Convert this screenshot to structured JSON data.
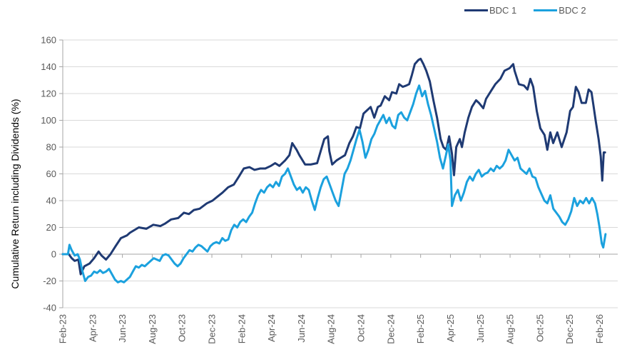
{
  "chart_data": {
    "type": "line",
    "title": "",
    "xlabel": "",
    "ylabel": "Cumulative Return including Dividends (%)",
    "ylim": [
      -40,
      160
    ],
    "yticks": [
      -40,
      -20,
      0,
      20,
      40,
      60,
      80,
      100,
      120,
      140,
      160
    ],
    "grid": true,
    "legend_position": "top-right",
    "x_tick_labels": [
      "Feb-23",
      "Apr-23",
      "Jun-23",
      "Aug-23",
      "Oct-23",
      "Dec-23",
      "Feb-24",
      "Apr-24",
      "Jun-24",
      "Aug-24",
      "Oct-24",
      "Dec-24",
      "Feb-25",
      "Apr-25",
      "Jun-25",
      "Aug-25",
      "Oct-25",
      "Dec-25",
      "Feb-26"
    ],
    "x_unit": "months since Feb-23",
    "xlim": [
      0,
      37.22
    ],
    "series": [
      {
        "name": "BDC 1",
        "color": "#1f3a73",
        "points": [
          [
            0,
            0
          ],
          [
            0.4,
            0
          ],
          [
            0.6,
            -3
          ],
          [
            0.8,
            -5
          ],
          [
            1.05,
            -4
          ],
          [
            1.2,
            -15
          ],
          [
            1.45,
            -9
          ],
          [
            1.8,
            -7
          ],
          [
            2.1,
            -3
          ],
          [
            2.4,
            2
          ],
          [
            2.6,
            -1
          ],
          [
            2.9,
            -4
          ],
          [
            3.2,
            0
          ],
          [
            3.54,
            6
          ],
          [
            3.9,
            12
          ],
          [
            4.3,
            14
          ],
          [
            4.5,
            16
          ],
          [
            5.1,
            20
          ],
          [
            5.6,
            19
          ],
          [
            6.07,
            22
          ],
          [
            6.55,
            21
          ],
          [
            6.88,
            23
          ],
          [
            7.27,
            26
          ],
          [
            7.74,
            27
          ],
          [
            8.13,
            31
          ],
          [
            8.46,
            30
          ],
          [
            8.8,
            33
          ],
          [
            9.18,
            34
          ],
          [
            9.66,
            38
          ],
          [
            10.04,
            40
          ],
          [
            10.37,
            43
          ],
          [
            10.71,
            46
          ],
          [
            11.09,
            50
          ],
          [
            11.47,
            52
          ],
          [
            11.81,
            58
          ],
          [
            12.14,
            64
          ],
          [
            12.52,
            65
          ],
          [
            12.86,
            63
          ],
          [
            13.24,
            64
          ],
          [
            13.58,
            64
          ],
          [
            13.96,
            66
          ],
          [
            14.24,
            68
          ],
          [
            14.53,
            66
          ],
          [
            14.91,
            70
          ],
          [
            15.2,
            74
          ],
          [
            15.39,
            83
          ],
          [
            15.68,
            78
          ],
          [
            15.87,
            74
          ],
          [
            16.25,
            67
          ],
          [
            16.63,
            67
          ],
          [
            17.06,
            68
          ],
          [
            17.3,
            77
          ],
          [
            17.54,
            86
          ],
          [
            17.78,
            88
          ],
          [
            17.88,
            77
          ],
          [
            18.07,
            67
          ],
          [
            18.36,
            70
          ],
          [
            18.64,
            72
          ],
          [
            18.93,
            74
          ],
          [
            19.22,
            83
          ],
          [
            19.46,
            88
          ],
          [
            19.69,
            95
          ],
          [
            19.93,
            94
          ],
          [
            20.17,
            105
          ],
          [
            20.36,
            107
          ],
          [
            20.65,
            110
          ],
          [
            20.89,
            102
          ],
          [
            21.13,
            110
          ],
          [
            21.32,
            111
          ],
          [
            21.6,
            118
          ],
          [
            21.89,
            115
          ],
          [
            22.08,
            121
          ],
          [
            22.37,
            120
          ],
          [
            22.56,
            127
          ],
          [
            22.8,
            125
          ],
          [
            23.04,
            126
          ],
          [
            23.23,
            127
          ],
          [
            23.42,
            134
          ],
          [
            23.61,
            142
          ],
          [
            23.85,
            145
          ],
          [
            24.0,
            146
          ],
          [
            24.19,
            142
          ],
          [
            24.38,
            137
          ],
          [
            24.62,
            129
          ],
          [
            24.86,
            115
          ],
          [
            25.1,
            102
          ],
          [
            25.34,
            86
          ],
          [
            25.53,
            80
          ],
          [
            25.72,
            78
          ],
          [
            25.91,
            88
          ],
          [
            26.1,
            75
          ],
          [
            26.24,
            59
          ],
          [
            26.39,
            80
          ],
          [
            26.63,
            86
          ],
          [
            26.77,
            80
          ],
          [
            26.96,
            91
          ],
          [
            27.2,
            102
          ],
          [
            27.44,
            110
          ],
          [
            27.72,
            115
          ],
          [
            27.91,
            113
          ],
          [
            28.2,
            109
          ],
          [
            28.39,
            116
          ],
          [
            28.78,
            123
          ],
          [
            29.01,
            127
          ],
          [
            29.35,
            131
          ],
          [
            29.63,
            137
          ],
          [
            29.97,
            139
          ],
          [
            30.21,
            142
          ],
          [
            30.3,
            137
          ],
          [
            30.59,
            127
          ],
          [
            30.93,
            126
          ],
          [
            31.17,
            123
          ],
          [
            31.36,
            131
          ],
          [
            31.55,
            125
          ],
          [
            31.79,
            107
          ],
          [
            32.03,
            94
          ],
          [
            32.31,
            89
          ],
          [
            32.5,
            78
          ],
          [
            32.7,
            91
          ],
          [
            32.89,
            83
          ],
          [
            33.17,
            91
          ],
          [
            33.46,
            80
          ],
          [
            33.79,
            91
          ],
          [
            34.03,
            107
          ],
          [
            34.22,
            110
          ],
          [
            34.41,
            125
          ],
          [
            34.6,
            121
          ],
          [
            34.8,
            113
          ],
          [
            35.08,
            113
          ],
          [
            35.27,
            123
          ],
          [
            35.46,
            121
          ],
          [
            35.61,
            110
          ],
          [
            35.75,
            99
          ],
          [
            35.94,
            86
          ],
          [
            36.08,
            73
          ],
          [
            36.18,
            55
          ],
          [
            36.28,
            76
          ],
          [
            36.37,
            76
          ]
        ]
      },
      {
        "name": "BDC 2",
        "color": "#1ba1de",
        "points": [
          [
            0,
            0
          ],
          [
            0.35,
            0
          ],
          [
            0.45,
            7
          ],
          [
            0.6,
            3
          ],
          [
            0.8,
            -1
          ],
          [
            1.0,
            0
          ],
          [
            1.15,
            -4
          ],
          [
            1.3,
            -12
          ],
          [
            1.5,
            -20
          ],
          [
            1.7,
            -17
          ],
          [
            1.9,
            -16
          ],
          [
            2.1,
            -13
          ],
          [
            2.3,
            -14
          ],
          [
            2.5,
            -12
          ],
          [
            2.7,
            -14
          ],
          [
            2.9,
            -13
          ],
          [
            3.1,
            -11
          ],
          [
            3.3,
            -15
          ],
          [
            3.5,
            -19
          ],
          [
            3.7,
            -21
          ],
          [
            3.9,
            -20
          ],
          [
            4.1,
            -21
          ],
          [
            4.3,
            -19
          ],
          [
            4.5,
            -17
          ],
          [
            4.7,
            -13
          ],
          [
            4.9,
            -9
          ],
          [
            5.1,
            -10
          ],
          [
            5.3,
            -8
          ],
          [
            5.5,
            -9
          ],
          [
            5.7,
            -7
          ],
          [
            5.9,
            -5
          ],
          [
            6.1,
            -3
          ],
          [
            6.3,
            -4
          ],
          [
            6.5,
            -5
          ],
          [
            6.7,
            -1
          ],
          [
            6.9,
            0
          ],
          [
            7.1,
            -1
          ],
          [
            7.3,
            -4
          ],
          [
            7.5,
            -7
          ],
          [
            7.7,
            -9
          ],
          [
            7.9,
            -7
          ],
          [
            8.1,
            -3
          ],
          [
            8.3,
            0
          ],
          [
            8.5,
            3
          ],
          [
            8.7,
            2
          ],
          [
            8.9,
            5
          ],
          [
            9.1,
            7
          ],
          [
            9.3,
            6
          ],
          [
            9.5,
            4
          ],
          [
            9.7,
            2
          ],
          [
            9.9,
            6
          ],
          [
            10.1,
            8
          ],
          [
            10.3,
            9
          ],
          [
            10.5,
            8
          ],
          [
            10.7,
            12
          ],
          [
            10.9,
            10
          ],
          [
            11.1,
            11
          ],
          [
            11.3,
            18
          ],
          [
            11.5,
            22
          ],
          [
            11.7,
            20
          ],
          [
            11.9,
            24
          ],
          [
            12.1,
            26
          ],
          [
            12.3,
            24
          ],
          [
            12.5,
            28
          ],
          [
            12.7,
            31
          ],
          [
            12.9,
            38
          ],
          [
            13.1,
            44
          ],
          [
            13.3,
            48
          ],
          [
            13.5,
            46
          ],
          [
            13.7,
            50
          ],
          [
            13.9,
            52
          ],
          [
            14.1,
            50
          ],
          [
            14.3,
            54
          ],
          [
            14.5,
            51
          ],
          [
            14.7,
            58
          ],
          [
            14.9,
            60
          ],
          [
            15.1,
            64
          ],
          [
            15.3,
            58
          ],
          [
            15.5,
            52
          ],
          [
            15.7,
            48
          ],
          [
            15.9,
            50
          ],
          [
            16.1,
            46
          ],
          [
            16.3,
            50
          ],
          [
            16.5,
            48
          ],
          [
            16.7,
            40
          ],
          [
            16.9,
            33
          ],
          [
            17.1,
            42
          ],
          [
            17.3,
            50
          ],
          [
            17.5,
            56
          ],
          [
            17.7,
            58
          ],
          [
            17.9,
            52
          ],
          [
            18.1,
            46
          ],
          [
            18.3,
            40
          ],
          [
            18.5,
            36
          ],
          [
            18.7,
            48
          ],
          [
            18.9,
            60
          ],
          [
            19.1,
            64
          ],
          [
            19.3,
            70
          ],
          [
            19.5,
            78
          ],
          [
            19.7,
            86
          ],
          [
            19.9,
            93
          ],
          [
            20.1,
            84
          ],
          [
            20.3,
            72
          ],
          [
            20.5,
            78
          ],
          [
            20.7,
            86
          ],
          [
            20.9,
            90
          ],
          [
            21.1,
            96
          ],
          [
            21.3,
            100
          ],
          [
            21.5,
            104
          ],
          [
            21.7,
            98
          ],
          [
            21.9,
            102
          ],
          [
            22.1,
            96
          ],
          [
            22.3,
            94
          ],
          [
            22.5,
            104
          ],
          [
            22.7,
            106
          ],
          [
            22.9,
            102
          ],
          [
            23.1,
            100
          ],
          [
            23.3,
            106
          ],
          [
            23.5,
            112
          ],
          [
            23.7,
            120
          ],
          [
            23.9,
            126
          ],
          [
            24.1,
            118
          ],
          [
            24.3,
            122
          ],
          [
            24.5,
            112
          ],
          [
            24.7,
            104
          ],
          [
            24.9,
            94
          ],
          [
            25.1,
            84
          ],
          [
            25.3,
            72
          ],
          [
            25.5,
            64
          ],
          [
            25.7,
            74
          ],
          [
            25.85,
            82
          ],
          [
            26.0,
            70
          ],
          [
            26.1,
            36
          ],
          [
            26.3,
            44
          ],
          [
            26.5,
            48
          ],
          [
            26.7,
            40
          ],
          [
            26.9,
            46
          ],
          [
            27.1,
            54
          ],
          [
            27.3,
            58
          ],
          [
            27.5,
            55
          ],
          [
            27.7,
            60
          ],
          [
            27.9,
            63
          ],
          [
            28.1,
            58
          ],
          [
            28.3,
            60
          ],
          [
            28.5,
            61
          ],
          [
            28.7,
            64
          ],
          [
            28.9,
            62
          ],
          [
            29.1,
            66
          ],
          [
            29.3,
            64
          ],
          [
            29.5,
            66
          ],
          [
            29.7,
            70
          ],
          [
            29.9,
            78
          ],
          [
            30.1,
            74
          ],
          [
            30.3,
            70
          ],
          [
            30.5,
            72
          ],
          [
            30.7,
            64
          ],
          [
            30.9,
            62
          ],
          [
            31.1,
            60
          ],
          [
            31.3,
            64
          ],
          [
            31.5,
            58
          ],
          [
            31.7,
            57
          ],
          [
            31.9,
            50
          ],
          [
            32.1,
            45
          ],
          [
            32.3,
            40
          ],
          [
            32.5,
            38
          ],
          [
            32.7,
            44
          ],
          [
            32.9,
            34
          ],
          [
            33.1,
            31
          ],
          [
            33.3,
            28
          ],
          [
            33.5,
            24
          ],
          [
            33.7,
            22
          ],
          [
            33.9,
            26
          ],
          [
            34.1,
            32
          ],
          [
            34.3,
            42
          ],
          [
            34.5,
            36
          ],
          [
            34.7,
            40
          ],
          [
            34.9,
            38
          ],
          [
            35.1,
            42
          ],
          [
            35.3,
            38
          ],
          [
            35.5,
            42
          ],
          [
            35.7,
            38
          ],
          [
            35.85,
            30
          ],
          [
            36.0,
            20
          ],
          [
            36.15,
            8
          ],
          [
            36.25,
            5
          ],
          [
            36.4,
            15
          ]
        ]
      }
    ]
  },
  "legend": {
    "items": [
      "BDC 1",
      "BDC 2"
    ]
  }
}
